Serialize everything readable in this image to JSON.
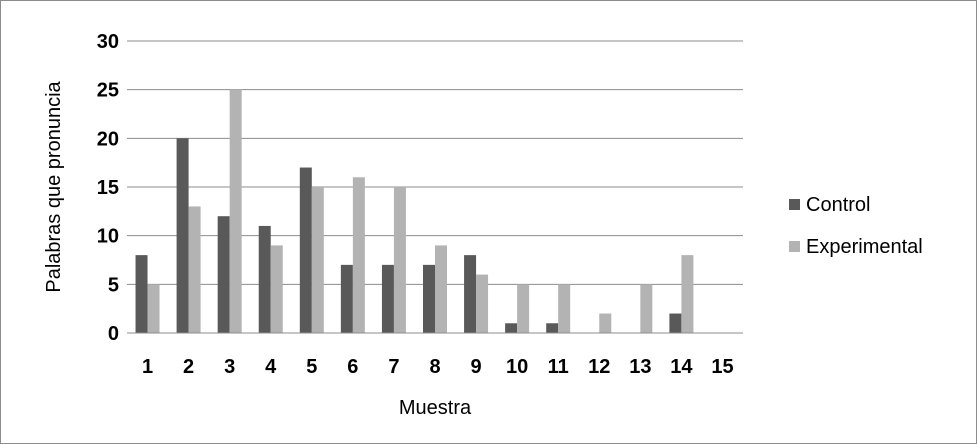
{
  "chart_data": {
    "type": "bar",
    "title": "",
    "xlabel": "Muestra",
    "ylabel": "Palabras que pronuncia",
    "categories": [
      "1",
      "2",
      "3",
      "4",
      "5",
      "6",
      "7",
      "8",
      "9",
      "10",
      "11",
      "12",
      "13",
      "14",
      "15"
    ],
    "series": [
      {
        "name": "Control",
        "color": "#595959",
        "values": [
          8,
          20,
          12,
          11,
          17,
          7,
          7,
          7,
          8,
          1,
          1,
          0,
          0,
          2,
          0
        ]
      },
      {
        "name": "Experimental",
        "color": "#b3b3b3",
        "values": [
          5,
          13,
          25,
          9,
          15,
          16,
          15,
          9,
          6,
          5,
          5,
          2,
          5,
          8,
          0
        ]
      }
    ],
    "ylim": [
      0,
      30
    ],
    "yticks": [
      0,
      5,
      10,
      15,
      20,
      25,
      30
    ],
    "grid": true,
    "legend_position": "right"
  }
}
